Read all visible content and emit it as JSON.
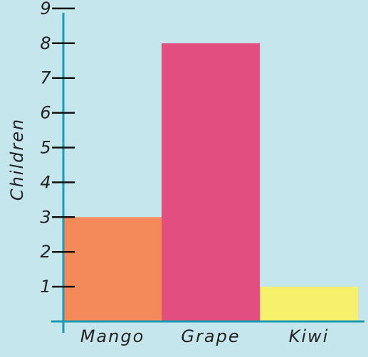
{
  "chart_data": {
    "type": "bar",
    "categories": [
      "Mango",
      "Grape",
      "Kiwi"
    ],
    "values": [
      3,
      8,
      1
    ],
    "bar_colors": [
      "#f48a5a",
      "#e34e80",
      "#f5f16a"
    ],
    "ylabel": "Children",
    "xlabel": "",
    "ylim": [
      0,
      9
    ],
    "yticks": [
      1,
      2,
      3,
      4,
      5,
      6,
      7,
      8,
      9
    ],
    "grid": false,
    "axis_color": "#1a9bb2",
    "background": "#c5e6ec"
  }
}
